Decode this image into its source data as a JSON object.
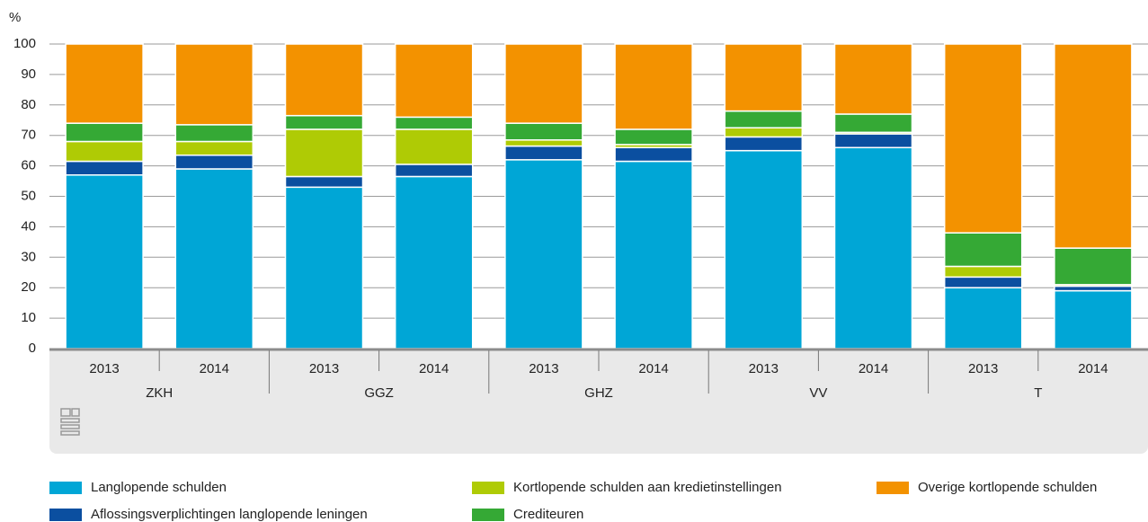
{
  "chart_data": {
    "type": "stacked_bar",
    "y_label": "%",
    "categories": [
      "2013",
      "2014",
      "2013",
      "2014",
      "2013",
      "2014",
      "2013",
      "2014",
      "2013",
      "2014"
    ],
    "groups": [
      "ZKH",
      "GGZ",
      "GHZ",
      "VV",
      "T"
    ],
    "series": [
      {
        "name": "Langlopende schulden",
        "color": "#00a6d6",
        "values": [
          57,
          59,
          53,
          56.5,
          62,
          61.5,
          65,
          66,
          20,
          19
        ]
      },
      {
        "name": "Aflossingsverplichtingen langlopende leningen",
        "color": "#0b4fa0",
        "values": [
          4.5,
          4.5,
          3.5,
          4,
          4.5,
          4.5,
          4.5,
          4.5,
          3.5,
          1.5
        ]
      },
      {
        "name": "Kortlopende schulden aan kredietinstellingen",
        "color": "#afcb05",
        "values": [
          6.5,
          4.5,
          15.5,
          11.5,
          2,
          1,
          3,
          0.5,
          3.5,
          0.5
        ]
      },
      {
        "name": "Crediteuren",
        "color": "#35a935",
        "values": [
          6,
          5.5,
          4.5,
          4,
          5.5,
          5,
          5.5,
          6,
          11,
          12
        ]
      },
      {
        "name": "Overige kortlopende schulden",
        "color": "#f39200",
        "values": [
          26,
          26.5,
          23.5,
          24,
          26,
          28,
          22,
          23,
          62,
          67
        ]
      }
    ],
    "ylim": [
      0,
      100
    ],
    "yticks": [
      0,
      10,
      20,
      30,
      40,
      50,
      60,
      70,
      80,
      90,
      100
    ],
    "grid": true
  }
}
